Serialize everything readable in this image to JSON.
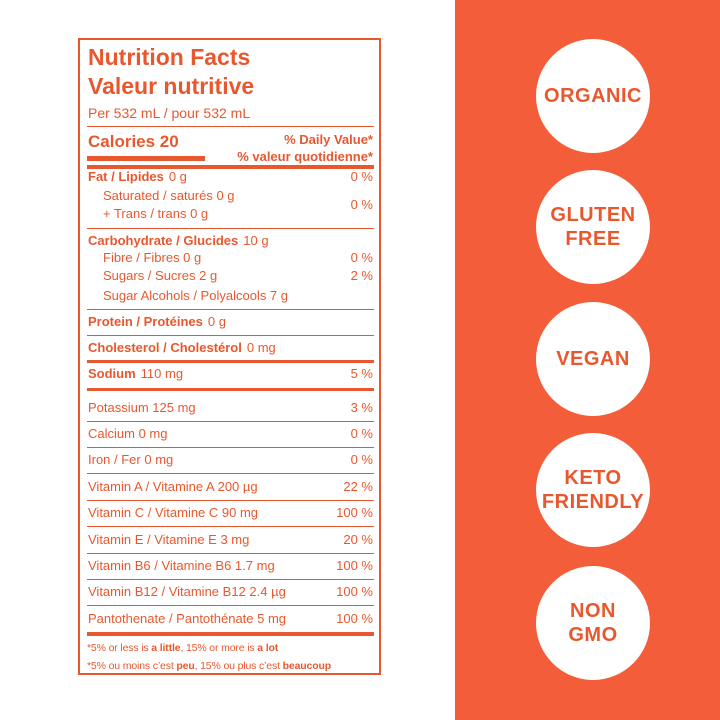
{
  "label": {
    "title_en": "Nutrition Facts",
    "title_fr": "Valeur nutritive",
    "serving": "Per 532 mL / pour 532 mL",
    "calories": "Calories 20",
    "dv_en": "% Daily Value*",
    "dv_fr": "% valeur quotidienne*",
    "rows": [
      {
        "name": "Fat / Lipides",
        "amount": "0 g",
        "dv": "0 %"
      },
      {
        "lines": [
          "Saturated / saturés 0 g",
          "+ Trans / trans 0 g"
        ],
        "dv": "0 %"
      },
      {
        "name": "Carbohydrate / Glucides",
        "amount": "10 g"
      },
      {
        "lines": [
          "Fibre / Fibres 0 g"
        ],
        "dv": "0 %"
      },
      {
        "lines": [
          "Sugars / Sucres 2 g"
        ],
        "dv": "2 %"
      },
      {
        "lines": [
          "Sugar Alcohols / Polyalcools 7 g"
        ]
      },
      {
        "name": "Protein / Protéines",
        "amount": "0 g"
      },
      {
        "name": "Cholesterol / Cholestérol",
        "amount": "0 mg"
      },
      {
        "name": "Sodium",
        "amount": "110 mg",
        "dv": "5 %"
      },
      {
        "lines": [
          "Potassium 125 mg"
        ],
        "dv": "3 %"
      },
      {
        "lines": [
          "Calcium 0 mg"
        ],
        "dv": "0 %"
      },
      {
        "lines": [
          "Iron / Fer 0 mg"
        ],
        "dv": "0 %"
      },
      {
        "lines": [
          "Vitamin A / Vitamine A 200 µg"
        ],
        "dv": "22 %"
      },
      {
        "lines": [
          "Vitamin C / Vitamine C 90 mg"
        ],
        "dv": "100 %"
      },
      {
        "lines": [
          "Vitamin E / Vitamine E 3 mg"
        ],
        "dv": "20 %"
      },
      {
        "lines": [
          "Vitamin B6 / Vitamine B6 1.7 mg"
        ],
        "dv": "100 %"
      },
      {
        "lines": [
          "Vitamin B12 / Vitamine B12 2.4 µg"
        ],
        "dv": "100 %"
      },
      {
        "lines": [
          "Pantothenate / Pantothénate 5 mg"
        ],
        "dv": "100 %"
      }
    ],
    "footnote": [
      [
        "*5% or less is ",
        "a little",
        ", 15% or more is ",
        "a lot"
      ],
      [
        "*5% ou moins c’est ",
        "peu",
        ", 15% ou plus c’est ",
        "beaucoup"
      ]
    ]
  },
  "badges": [
    [
      "ORGANIC"
    ],
    [
      "GLUTEN",
      "FREE"
    ],
    [
      "VEGAN"
    ],
    [
      "KETO",
      "FRIENDLY"
    ],
    [
      "NON",
      "GMO"
    ]
  ]
}
